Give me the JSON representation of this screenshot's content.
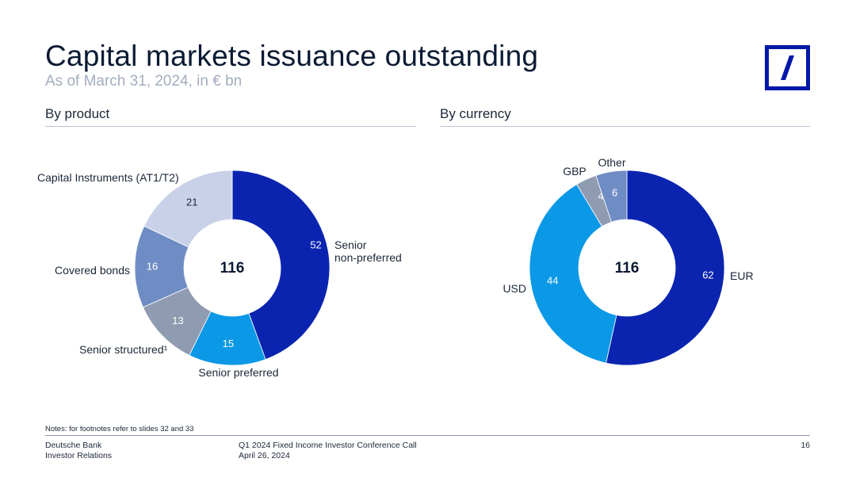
{
  "header": {
    "title": "Capital markets issuance outstanding",
    "subtitle": "As of March 31, 2024, in € bn"
  },
  "sections": {
    "product": "By product",
    "currency": "By currency"
  },
  "chart_data": [
    {
      "type": "pie",
      "variant": "donut",
      "title": "By product",
      "center_label": "116",
      "slices": [
        {
          "label": "Senior non-preferred",
          "label_lines": [
            "Senior",
            "non-preferred"
          ],
          "value": 52,
          "color": "#0a24b0"
        },
        {
          "label": "Senior preferred",
          "label_lines": [
            "Senior preferred"
          ],
          "value": 15,
          "color": "#0b98e6"
        },
        {
          "label": "Senior structured¹",
          "label_lines": [
            "Senior structured¹"
          ],
          "value": 13,
          "color": "#8f9bb0"
        },
        {
          "label": "Covered bonds",
          "label_lines": [
            "Covered bonds"
          ],
          "value": 16,
          "color": "#6f8dc4"
        },
        {
          "label": "Capital Instruments (AT1/T2)",
          "label_lines": [
            "Capital Instruments (AT1/T2)"
          ],
          "value": 21,
          "color": "#c8d1e8"
        }
      ]
    },
    {
      "type": "pie",
      "variant": "donut",
      "title": "By currency",
      "center_label": "116",
      "slices": [
        {
          "label": "EUR",
          "label_lines": [
            "EUR"
          ],
          "value": 62,
          "color": "#0a24b0"
        },
        {
          "label": "USD",
          "label_lines": [
            "USD"
          ],
          "value": 44,
          "color": "#0b98e6"
        },
        {
          "label": "GBP",
          "label_lines": [
            "GBP"
          ],
          "value": 4,
          "color": "#8f9bb0"
        },
        {
          "label": "Other",
          "label_lines": [
            "Other"
          ],
          "value": 6,
          "color": "#6f8dc4"
        }
      ]
    }
  ],
  "notes": "Notes: for footnotes refer to slides 32 and 33",
  "footer": {
    "org_line1": "Deutsche Bank",
    "org_line2": "Investor Relations",
    "event_line1": "Q1 2024 Fixed Income Investor Conference Call",
    "event_line2": "April 26, 2024",
    "page_number": "16"
  },
  "colors": {
    "brand_blue": "#0018a8",
    "title_text": "#0b1a33",
    "subtitle_text": "#a3adbf"
  }
}
